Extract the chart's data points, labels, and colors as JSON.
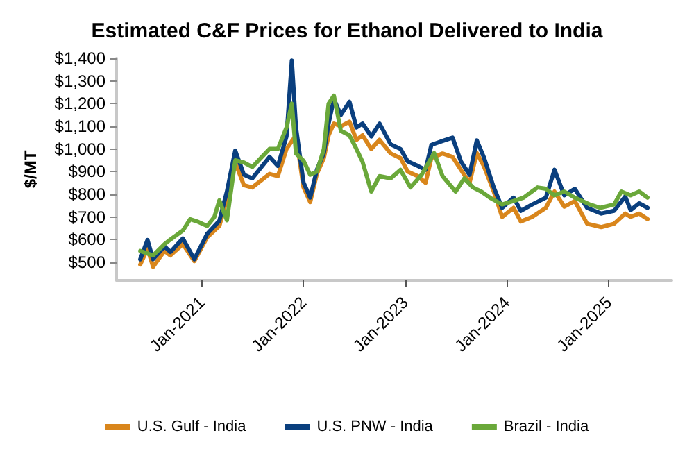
{
  "chart_data": {
    "type": "line",
    "title": "Estimated C&F Prices for Ethanol Delivered to India",
    "ylabel": "$/MT",
    "xlim": [
      "2020-03-01",
      "2025-08-15"
    ],
    "xticks": [
      {
        "value": "2021-01-01",
        "label": "Jan-2021"
      },
      {
        "value": "2022-01-01",
        "label": "Jan-2022"
      },
      {
        "value": "2023-01-01",
        "label": "Jan-2023"
      },
      {
        "value": "2024-01-01",
        "label": "Jan-2024"
      },
      {
        "value": "2025-01-01",
        "label": "Jan-2025"
      }
    ],
    "ylim": [
      420,
      1400
    ],
    "yticks": [
      {
        "value": 500,
        "label": "$500"
      },
      {
        "value": 600,
        "label": "$600"
      },
      {
        "value": 700,
        "label": "$700"
      },
      {
        "value": 800,
        "label": "$800"
      },
      {
        "value": 900,
        "label": "$900"
      },
      {
        "value": 1000,
        "label": "$1,000"
      },
      {
        "value": 1100,
        "label": "$1,100"
      },
      {
        "value": 1200,
        "label": "$1,200"
      },
      {
        "value": 1300,
        "label": "$1,300"
      },
      {
        "value": 1400,
        "label": "$1,400"
      }
    ],
    "grid": false,
    "legend": "bottom",
    "marker": "none",
    "line_style": "solid",
    "series": [
      {
        "name": "U.S. Gulf - India",
        "color": "#d9861c",
        "x": [
          "2020-05-25",
          "2020-06-20",
          "2020-07-10",
          "2020-08-20",
          "2020-09-10",
          "2020-10-25",
          "2020-12-05",
          "2021-01-20",
          "2021-03-05",
          "2021-04-01",
          "2021-05-01",
          "2021-06-01",
          "2021-07-01",
          "2021-09-01",
          "2021-10-01",
          "2021-11-01",
          "2021-12-05",
          "2022-01-01",
          "2022-01-25",
          "2022-02-18",
          "2022-03-15",
          "2022-04-01",
          "2022-04-20",
          "2022-05-15",
          "2022-06-15",
          "2022-07-10",
          "2022-08-01",
          "2022-09-01",
          "2022-10-01",
          "2022-11-10",
          "2022-12-15",
          "2023-01-10",
          "2023-02-15",
          "2023-03-15",
          "2023-04-05",
          "2023-05-15",
          "2023-06-20",
          "2023-07-20",
          "2023-08-20",
          "2023-09-15",
          "2023-10-10",
          "2023-11-15",
          "2023-12-15",
          "2024-01-25",
          "2024-02-20",
          "2024-04-01",
          "2024-05-20",
          "2024-06-20",
          "2024-07-25",
          "2024-09-01",
          "2024-10-15",
          "2024-12-05",
          "2025-01-20",
          "2025-03-01",
          "2025-03-20",
          "2025-04-20",
          "2025-05-20"
        ],
        "values": [
          490,
          560,
          480,
          550,
          530,
          580,
          505,
          610,
          660,
          780,
          940,
          840,
          830,
          890,
          880,
          1000,
          1060,
          830,
          765,
          890,
          960,
          1060,
          1112,
          1100,
          1120,
          1040,
          1060,
          1000,
          1040,
          980,
          960,
          900,
          880,
          850,
          960,
          980,
          965,
          908,
          850,
          982,
          925,
          812,
          700,
          740,
          680,
          700,
          740,
          812,
          745,
          770,
          670,
          655,
          670,
          715,
          700,
          715,
          690
        ]
      },
      {
        "name": "U.S. PNW - India",
        "color": "#0a3f7e",
        "x": [
          "2020-05-25",
          "2020-06-20",
          "2020-07-10",
          "2020-08-20",
          "2020-09-10",
          "2020-10-25",
          "2020-12-05",
          "2021-01-20",
          "2021-03-05",
          "2021-04-01",
          "2021-05-01",
          "2021-06-01",
          "2021-07-01",
          "2021-09-01",
          "2021-10-01",
          "2021-11-01",
          "2021-11-20",
          "2021-12-05",
          "2022-01-01",
          "2022-01-25",
          "2022-02-18",
          "2022-03-15",
          "2022-04-01",
          "2022-04-20",
          "2022-05-15",
          "2022-06-15",
          "2022-07-10",
          "2022-08-01",
          "2022-09-01",
          "2022-10-01",
          "2022-11-10",
          "2022-12-15",
          "2023-01-10",
          "2023-02-15",
          "2023-03-15",
          "2023-04-05",
          "2023-05-15",
          "2023-06-20",
          "2023-07-20",
          "2023-08-20",
          "2023-09-15",
          "2023-10-10",
          "2023-11-15",
          "2023-12-15",
          "2024-01-25",
          "2024-02-20",
          "2024-04-01",
          "2024-05-20",
          "2024-06-20",
          "2024-07-25",
          "2024-09-01",
          "2024-10-15",
          "2024-12-05",
          "2025-01-20",
          "2025-03-01",
          "2025-03-20",
          "2025-04-20",
          "2025-05-20"
        ],
        "values": [
          513,
          598,
          513,
          570,
          545,
          605,
          513,
          625,
          683,
          812,
          993,
          886,
          870,
          965,
          925,
          1055,
          1390,
          1095,
          852,
          785,
          908,
          982,
          1112,
          1220,
          1150,
          1208,
          1095,
          1112,
          1055,
          1112,
          1020,
          1000,
          945,
          925,
          908,
          1018,
          1035,
          1050,
          945,
          886,
          1038,
          965,
          830,
          740,
          785,
          727,
          755,
          785,
          908,
          795,
          824,
          740,
          715,
          727,
          790,
          730,
          760,
          740
        ]
      },
      {
        "name": "Brazil - India",
        "color": "#6aa83a",
        "x": [
          "2020-05-25",
          "2020-07-10",
          "2020-08-20",
          "2020-09-10",
          "2020-10-25",
          "2020-11-20",
          "2020-12-15",
          "2021-01-20",
          "2021-02-15",
          "2021-03-05",
          "2021-04-01",
          "2021-05-01",
          "2021-06-01",
          "2021-07-01",
          "2021-08-01",
          "2021-09-01",
          "2021-10-01",
          "2021-11-01",
          "2021-11-20",
          "2021-12-05",
          "2022-01-01",
          "2022-01-25",
          "2022-02-18",
          "2022-03-15",
          "2022-04-01",
          "2022-04-20",
          "2022-05-15",
          "2022-06-15",
          "2022-07-10",
          "2022-08-01",
          "2022-09-01",
          "2022-10-01",
          "2022-11-10",
          "2022-12-15",
          "2023-01-20",
          "2023-03-01",
          "2023-04-15",
          "2023-05-15",
          "2023-07-01",
          "2023-08-01",
          "2023-09-01",
          "2023-10-01",
          "2023-11-01",
          "2023-12-15",
          "2024-01-25",
          "2024-03-01",
          "2024-04-20",
          "2024-05-20",
          "2024-06-20",
          "2024-07-25",
          "2024-09-01",
          "2024-10-25",
          "2024-12-01",
          "2025-01-20",
          "2025-02-15",
          "2025-03-20",
          "2025-04-20",
          "2025-05-20"
        ],
        "values": [
          550,
          530,
          580,
          600,
          640,
          690,
          680,
          660,
          700,
          773,
          685,
          950,
          940,
          920,
          960,
          1000,
          1000,
          1095,
          1200,
          980,
          948,
          886,
          900,
          1000,
          1200,
          1235,
          1080,
          1060,
          1000,
          943,
          812,
          880,
          870,
          908,
          830,
          886,
          982,
          880,
          812,
          870,
          830,
          812,
          785,
          755,
          770,
          785,
          830,
          824,
          795,
          812,
          785,
          755,
          740,
          755,
          812,
          795,
          812,
          785
        ]
      }
    ]
  }
}
